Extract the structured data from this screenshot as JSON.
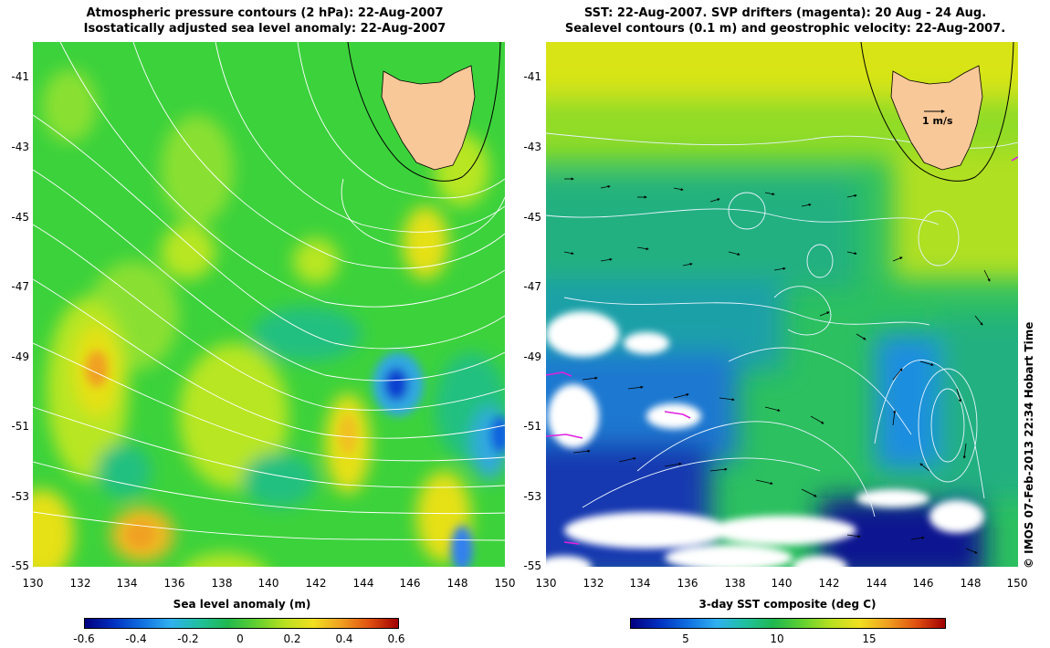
{
  "left_panel": {
    "title_line1": "Atmospheric pressure contours (2 hPa): 22-Aug-2007",
    "title_line2": "Isostatically adjusted sea level anomaly: 22-Aug-2007",
    "colorbar_title": "Sea level anomaly (m)",
    "colorbar_ticks": [
      "-0.6",
      "-0.4",
      "-0.2",
      "0",
      "0.2",
      "0.4",
      "0.6"
    ],
    "colors": {
      "background": "#3cd23c",
      "land": "#f9c898"
    }
  },
  "right_panel": {
    "title_line1": "SST: 22-Aug-2007. SVP drifters (magenta): 20 Aug - 24 Aug.",
    "title_line2": "Sealevel contours (0.1 m) and geostrophic velocity: 22-Aug-2007.",
    "colorbar_title": "3-day SST composite (deg C)",
    "colorbar_ticks": [
      "5",
      "10",
      "15"
    ],
    "scale_label": "1 m/s",
    "colors": {
      "land": "#f9c898",
      "drifter": "#e020e0"
    }
  },
  "axes": {
    "lat_ticks": [
      "-41",
      "-43",
      "-45",
      "-47",
      "-49",
      "-51",
      "-53",
      "-55"
    ],
    "lon_ticks": [
      "130",
      "132",
      "134",
      "136",
      "138",
      "140",
      "142",
      "144",
      "146",
      "148",
      "150"
    ]
  },
  "credit": "© IMOS 07-Feb-2013 22:34 Hobart Time"
}
